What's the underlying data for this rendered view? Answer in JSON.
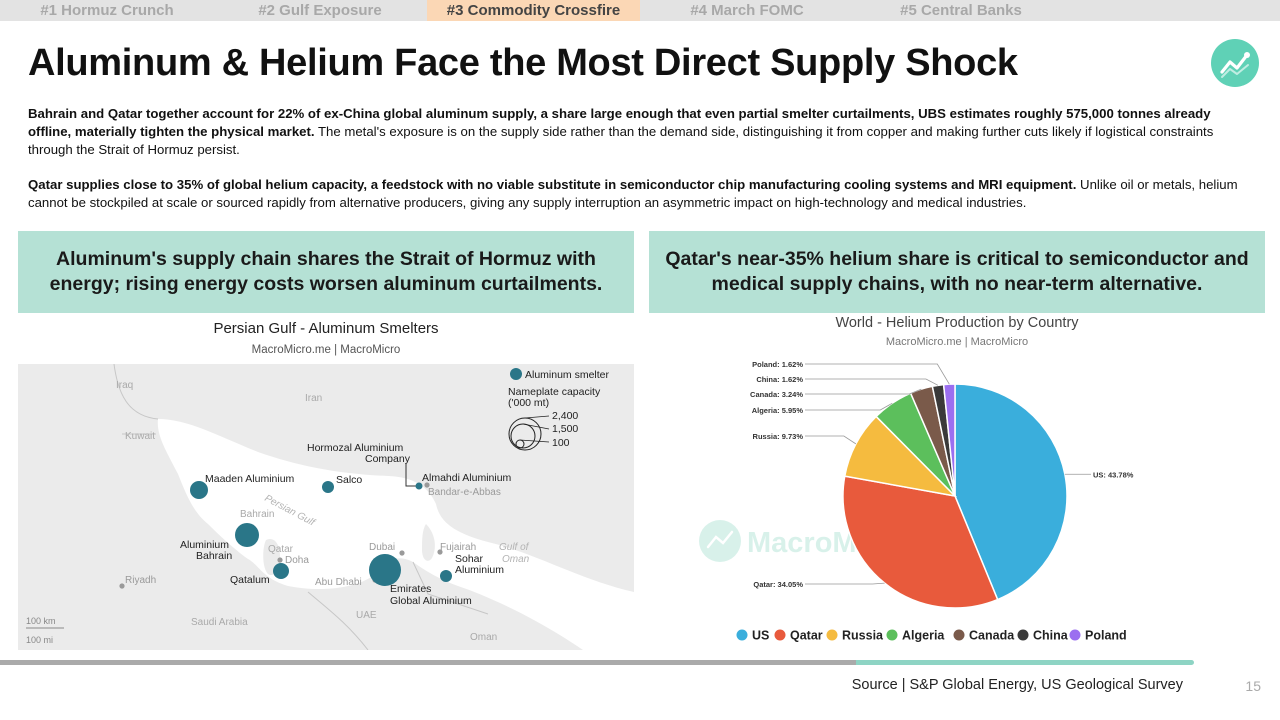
{
  "tabs": [
    {
      "label": "#1 Hormuz Crunch",
      "active": false
    },
    {
      "label": "#2 Gulf Exposure",
      "active": false
    },
    {
      "label": "#3 Commodity Crossfire",
      "active": true
    },
    {
      "label": "#4 March FOMC",
      "active": false
    },
    {
      "label": "#5 Central Banks",
      "active": false
    }
  ],
  "title": "Aluminum & Helium Face the Most Direct Supply Shock",
  "logo_icon": "chart-line-icon",
  "para1": {
    "bold": "Bahrain and Qatar together account for 22% of ex-China global aluminum supply, a share large enough that even partial smelter curtailments, UBS estimates roughly 575,000 tonnes already offline, materially tighten the physical market.",
    "rest": " The metal's exposure is on the supply side rather than the demand side, distinguishing it from copper and making further cuts likely if logistical constraints through the Strait of Hormuz persist."
  },
  "para2": {
    "bold": "Qatar supplies close to 35% of global helium capacity, a feedstock with no viable substitute in semiconductor chip manufacturing cooling systems and MRI equipment.",
    "rest": " Unlike oil or metals, helium cannot be stockpiled at scale or sourced rapidly from alternative producers, giving any supply interruption an asymmetric impact on high-technology and medical industries."
  },
  "callout_left": "Aluminum's supply chain shares the Strait of Hormuz with energy; rising energy costs worsen aluminum curtailments.",
  "callout_right": "Qatar's near-35% helium share is critical to semiconductor and medical supply chains, with no near-term alternative.",
  "map": {
    "title": "Persian Gulf - Aluminum Smelters",
    "subtitle": "MacroMicro.me | MacroMicro",
    "legend_title": "Aluminum smelter",
    "capacity_title": "Nameplate capacity",
    "capacity_unit": "('000 mt)",
    "capacity_levels": [
      "2,400",
      "1,500",
      "100"
    ],
    "countries": [
      "Iraq",
      "Iran",
      "Kuwait",
      "Bahrain",
      "Qatar",
      "UAE",
      "Saudi Arabia",
      "Oman"
    ],
    "water": [
      "Persian Gulf",
      "Gulf of",
      "Oman"
    ],
    "cities": [
      "Riyadh",
      "Doha",
      "Dubai",
      "Abu Dhabi",
      "Fujairah",
      "Bandar-e-Abbas"
    ],
    "smelters": [
      {
        "name": "Maaden Aluminium"
      },
      {
        "name": "Salco"
      },
      {
        "name": "Hormozal Aluminium",
        "name2": "Company"
      },
      {
        "name": "Almahdi Aluminium"
      },
      {
        "name": "Aluminium",
        "name2": "Bahrain"
      },
      {
        "name": "Qatalum"
      },
      {
        "name": "Emirates",
        "name2": "Global Aluminium"
      },
      {
        "name": "Sohar",
        "name2": "Aluminium"
      }
    ],
    "scale_km": "100 km",
    "scale_mi": "100 mi"
  },
  "chart_data": {
    "type": "pie",
    "title": "World - Helium Production by Country",
    "subtitle": "MacroMicro.me | MacroMicro",
    "watermark": "MacroMicro",
    "series": [
      {
        "name": "US",
        "value": 43.78,
        "label": "US: 43.78%",
        "color": "#3aaedc"
      },
      {
        "name": "Qatar",
        "value": 34.05,
        "label": "Qatar: 34.05%",
        "color": "#e85a3c"
      },
      {
        "name": "Russia",
        "value": 9.73,
        "label": "Russia: 9.73%",
        "color": "#f5bb3f"
      },
      {
        "name": "Algeria",
        "value": 5.95,
        "label": "Algeria: 5.95%",
        "color": "#5cbf5c"
      },
      {
        "name": "Canada",
        "value": 3.24,
        "label": "Canada: 3.24%",
        "color": "#7a5a4a"
      },
      {
        "name": "China",
        "value": 1.62,
        "label": "China: 1.62%",
        "color": "#3a3a3a"
      },
      {
        "name": "Poland",
        "value": 1.62,
        "label": "Poland: 1.62%",
        "color": "#9b6ff0"
      }
    ],
    "legend_position": "bottom"
  },
  "source": "Source | S&P Global Energy, US Geological Survey",
  "page_number": "15"
}
